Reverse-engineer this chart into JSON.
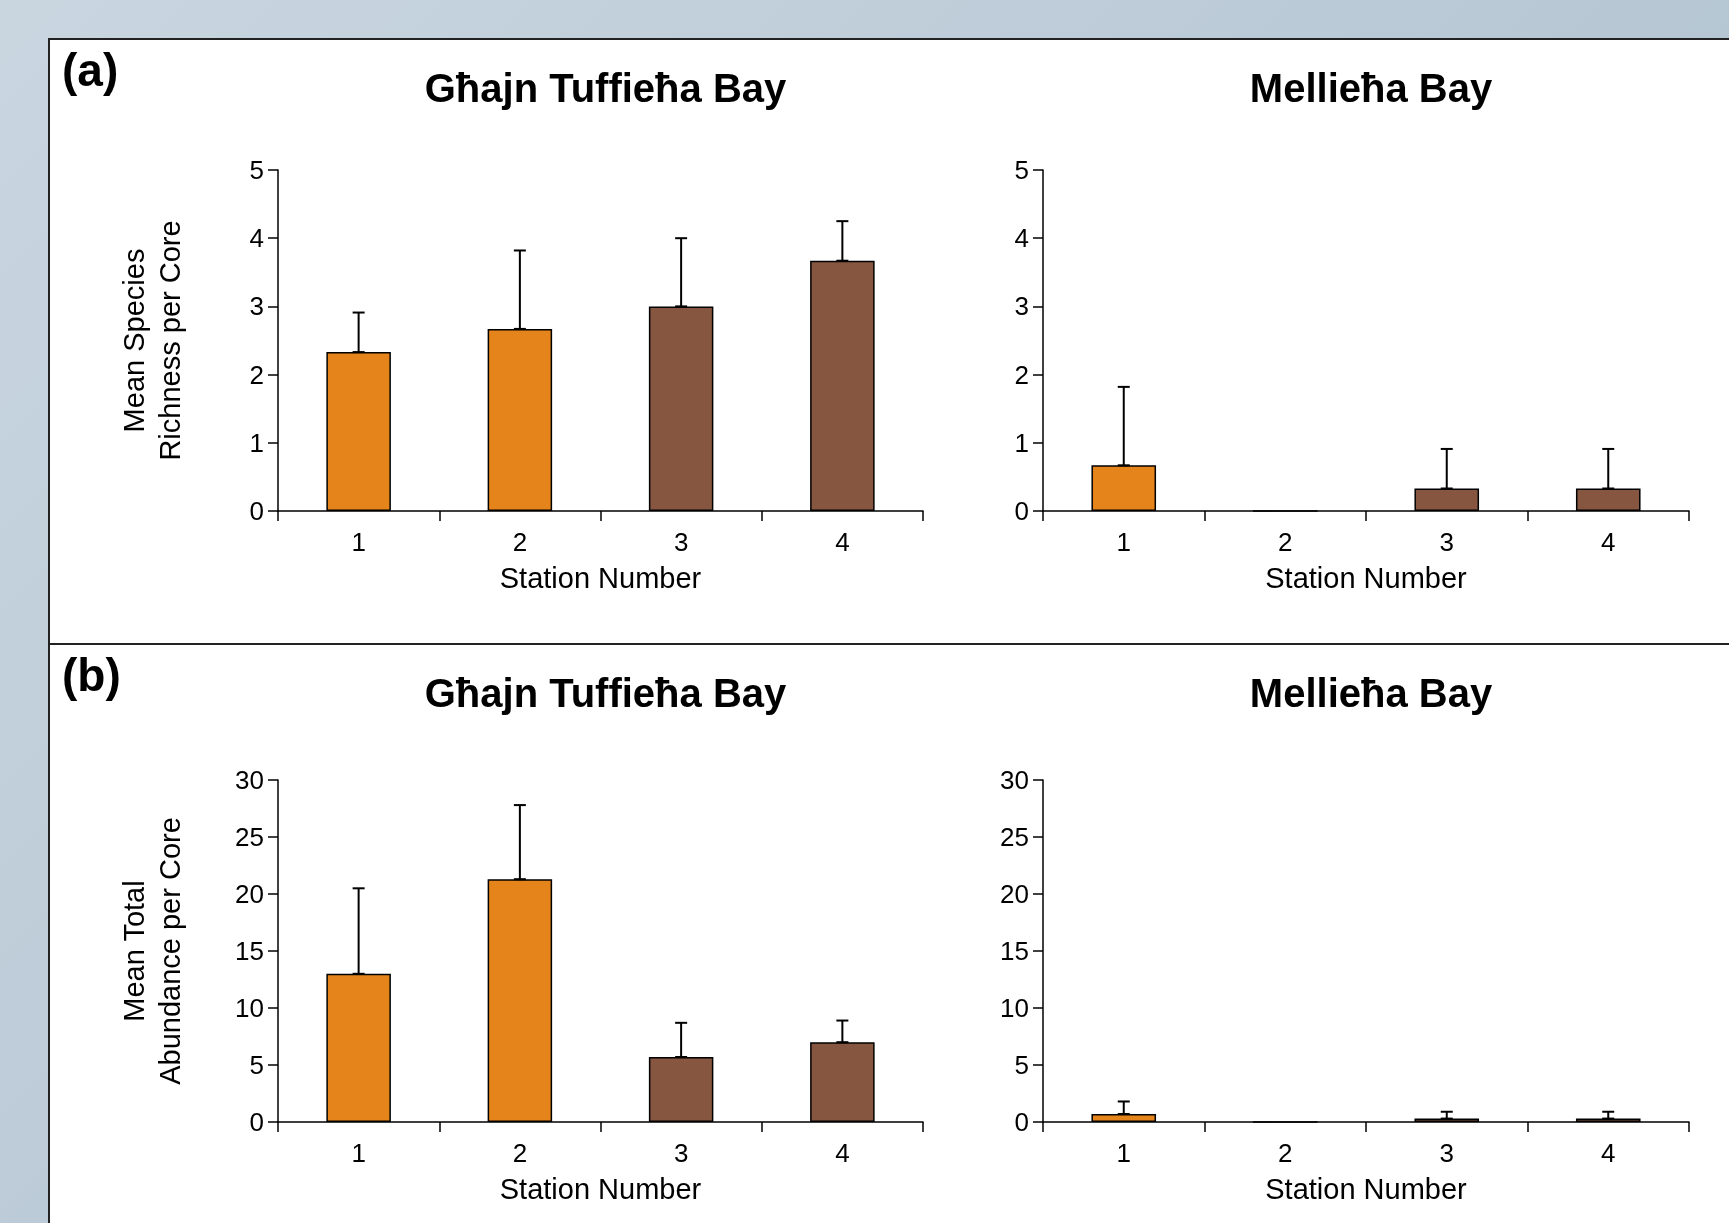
{
  "chart_data": [
    {
      "type": "bar",
      "title": "Għajn Tuffieħa Bay",
      "xlabel": "Station Number",
      "ylabel": "Mean Species\nRichness per Core",
      "annotations": [
        "(a)"
      ],
      "categories": [
        "1",
        "2",
        "3",
        "4"
      ],
      "values": [
        2.33,
        2.67,
        3.0,
        3.67
      ],
      "colors": [
        "#e5841a",
        "#e5841a",
        "#865640",
        "#865640"
      ],
      "errors": [
        [
          2.33,
          2.91
        ],
        [
          2.67,
          3.82
        ],
        [
          3.0,
          4.0
        ],
        [
          3.67,
          4.25
        ]
      ],
      "ylim": [
        0,
        5
      ],
      "yticks": [
        0,
        1,
        2,
        3,
        4,
        5
      ]
    },
    {
      "type": "bar",
      "title": "Mellieħa Bay",
      "xlabel": "Station Number",
      "categories": [
        "1",
        "2",
        "3",
        "4"
      ],
      "values": [
        0.67,
        0,
        0.33,
        0.33
      ],
      "colors": [
        "#e5841a",
        "#e5841a",
        "#865640",
        "#865640"
      ],
      "errors": [
        [
          0.67,
          1.82
        ],
        null,
        [
          0.33,
          0.91
        ],
        [
          0.33,
          0.91
        ]
      ],
      "ylim": [
        0,
        5
      ],
      "yticks": [
        0,
        1,
        2,
        3,
        4,
        5
      ]
    },
    {
      "type": "bar",
      "title": "Għajn Tuffieħa Bay",
      "xlabel": "Station Number",
      "ylabel": "Mean Total\nAbundance per Core",
      "annotations": [
        "(b)"
      ],
      "categories": [
        "1",
        "2",
        "3",
        "4"
      ],
      "values": [
        13.0,
        21.3,
        5.7,
        7.0
      ],
      "colors": [
        "#e5841a",
        "#e5841a",
        "#865640",
        "#865640"
      ],
      "errors": [
        [
          13.0,
          20.5
        ],
        [
          21.3,
          27.8
        ],
        [
          5.7,
          8.7
        ],
        [
          7.0,
          8.9
        ]
      ],
      "ylim": [
        0,
        30
      ],
      "yticks": [
        0,
        5,
        10,
        15,
        20,
        25,
        30
      ]
    },
    {
      "type": "bar",
      "title": "Mellieħa Bay",
      "xlabel": "Station Number",
      "categories": [
        "1",
        "2",
        "3",
        "4"
      ],
      "values": [
        0.7,
        0,
        0.3,
        0.3
      ],
      "colors": [
        "#e5841a",
        "#e5841a",
        "#865640",
        "#865640"
      ],
      "errors": [
        [
          0.7,
          1.8
        ],
        null,
        [
          0.3,
          0.9
        ],
        [
          0.3,
          0.9
        ]
      ],
      "ylim": [
        0,
        30
      ],
      "yticks": [
        0,
        5,
        10,
        15,
        20,
        25,
        30
      ]
    }
  ]
}
